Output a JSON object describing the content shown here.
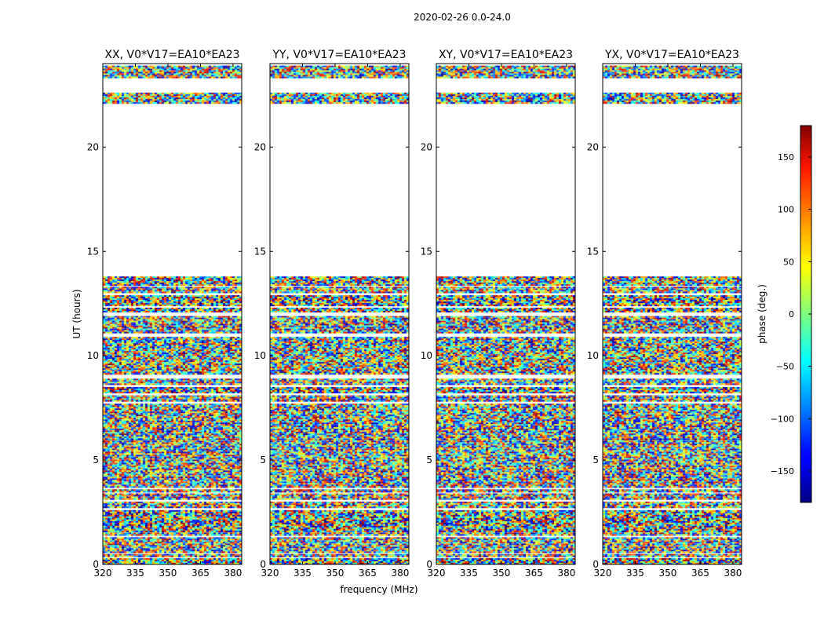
{
  "figure": {
    "suptitle": "2020-02-26 0.0-24.0",
    "xlabel": "frequency (MHz)",
    "ylabel": "UT (hours)",
    "colorbar_label": "phase (deg.)"
  },
  "chart_data": {
    "type": "heatmap",
    "colormap": "jet",
    "xlim": [
      320,
      384
    ],
    "ylim": [
      0,
      24
    ],
    "x_ticks": [
      "320",
      "335",
      "350",
      "365",
      "380"
    ],
    "y_ticks": [
      "0",
      "5",
      "10",
      "15",
      "20"
    ],
    "colorbar": {
      "range": [
        -180,
        180
      ],
      "ticks": [
        "−150",
        "−100",
        "−50",
        "0",
        "50",
        "100",
        "150"
      ],
      "tick_values": [
        -150,
        -100,
        -50,
        0,
        50,
        100,
        150
      ]
    },
    "data_bands_hours": [
      [
        0.0,
        0.3
      ],
      [
        0.4,
        0.5
      ],
      [
        0.6,
        1.3
      ],
      [
        1.4,
        1.6
      ],
      [
        1.6,
        2.6
      ],
      [
        2.7,
        3.0
      ],
      [
        3.1,
        3.4
      ],
      [
        3.5,
        3.6
      ],
      [
        3.7,
        4.8
      ],
      [
        4.8,
        6.0
      ],
      [
        6.0,
        7.7
      ],
      [
        7.8,
        8.1
      ],
      [
        8.2,
        8.5
      ],
      [
        8.6,
        8.9
      ],
      [
        9.1,
        10.9
      ],
      [
        11.1,
        11.9
      ],
      [
        12.1,
        12.3
      ],
      [
        12.4,
        12.9
      ],
      [
        13.0,
        13.3
      ],
      [
        13.4,
        13.8
      ],
      [
        22.1,
        22.6
      ],
      [
        23.3,
        23.9
      ]
    ],
    "panels": [
      {
        "title": "XX, V0*V17=EA10*EA23"
      },
      {
        "title": "YY, V0*V17=EA10*EA23"
      },
      {
        "title": "XY, V0*V17=EA10*EA23"
      },
      {
        "title": "YX, V0*V17=EA10*EA23"
      }
    ]
  }
}
